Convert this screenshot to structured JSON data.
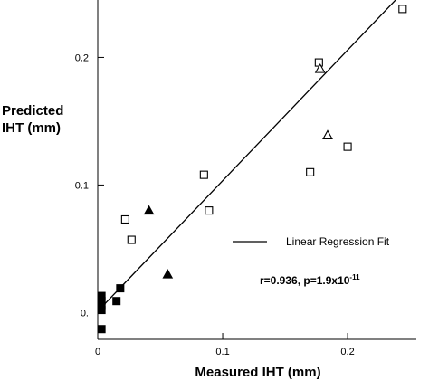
{
  "chart_data": {
    "type": "scatter",
    "xlabel": "Measured IHT (mm)",
    "ylabel_lines": [
      "Predicted",
      "IHT (mm)"
    ],
    "xlim": [
      0,
      0.255
    ],
    "ylim": [
      -0.021,
      0.245
    ],
    "x_ticks": [
      {
        "value": 0,
        "label": "0"
      },
      {
        "value": 0.1,
        "label": "0.1"
      },
      {
        "value": 0.2,
        "label": "0.2"
      }
    ],
    "y_ticks": [
      {
        "value": 0.0,
        "label": "0."
      },
      {
        "value": 0.1,
        "label": "0.1"
      },
      {
        "value": 0.2,
        "label": "0.2"
      }
    ],
    "series": [
      {
        "marker": "open-square",
        "points": [
          {
            "x": 0.022,
            "y": 0.073
          },
          {
            "x": 0.027,
            "y": 0.057
          },
          {
            "x": 0.085,
            "y": 0.108
          },
          {
            "x": 0.089,
            "y": 0.08
          },
          {
            "x": 0.17,
            "y": 0.11
          },
          {
            "x": 0.177,
            "y": 0.196
          },
          {
            "x": 0.2,
            "y": 0.13
          },
          {
            "x": 0.244,
            "y": 0.238
          }
        ]
      },
      {
        "marker": "open-triangle",
        "points": [
          {
            "x": 0.178,
            "y": 0.191
          },
          {
            "x": 0.184,
            "y": 0.139
          }
        ]
      },
      {
        "marker": "filled-triangle",
        "points": [
          {
            "x": 0.041,
            "y": 0.08
          },
          {
            "x": 0.056,
            "y": 0.03
          }
        ]
      },
      {
        "marker": "filled-square",
        "points": [
          {
            "x": 0.003,
            "y": 0.013
          },
          {
            "x": 0.003,
            "y": 0.009
          },
          {
            "x": 0.003,
            "y": 0.006
          },
          {
            "x": 0.003,
            "y": 0.002
          },
          {
            "x": 0.003,
            "y": -0.013
          },
          {
            "x": 0.015,
            "y": 0.009
          },
          {
            "x": 0.018,
            "y": 0.019
          }
        ]
      }
    ],
    "regression_line": {
      "x1": 0.0,
      "y1": 0.001,
      "x2": 0.255,
      "y2": 0.262
    },
    "legend": {
      "label": "Linear Regression Fit",
      "position": "middle-right"
    },
    "annotation": {
      "text": "r=0.936, p=1.9x10",
      "sup": "-11"
    }
  }
}
